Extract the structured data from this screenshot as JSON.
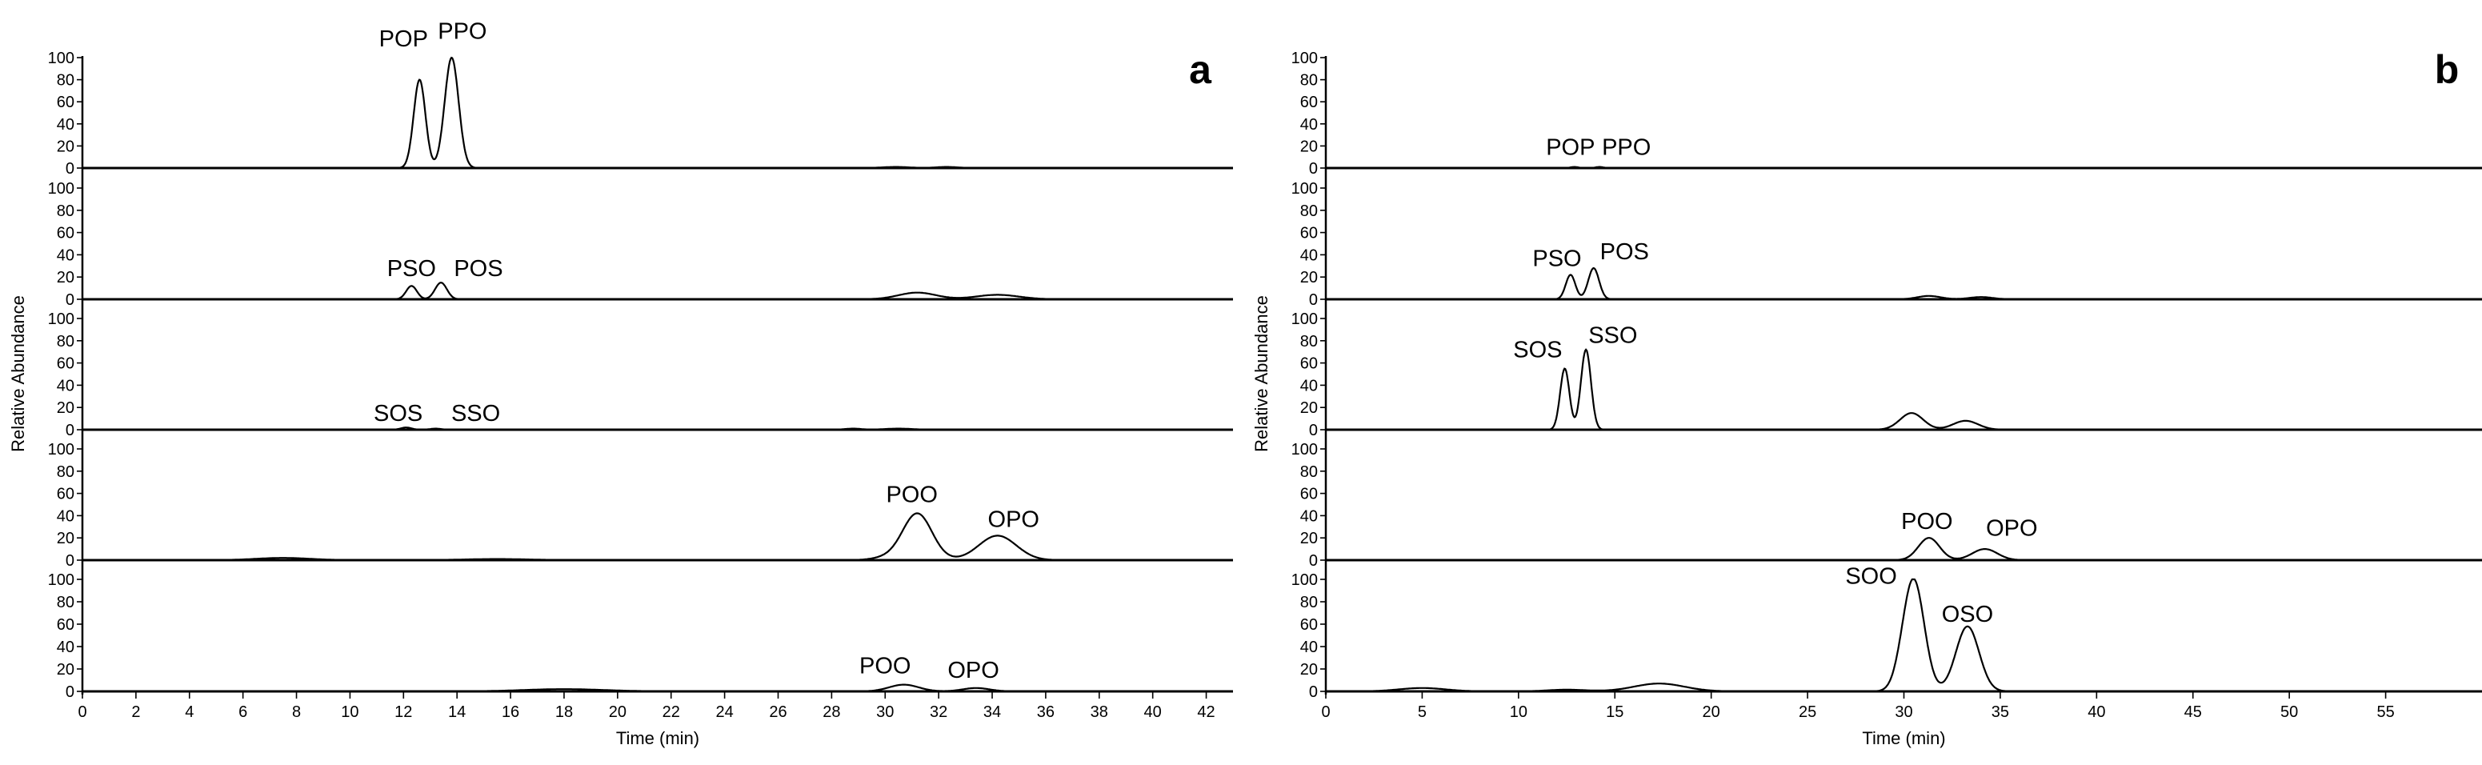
{
  "chart_data": [
    {
      "type": "line",
      "panel_letter": "a",
      "xlabel": "Time (min)",
      "ylabel": "Relative Abundance",
      "xlim": [
        0,
        43
      ],
      "ylim": [
        0,
        100
      ],
      "x_ticks": [
        0,
        2,
        4,
        6,
        8,
        10,
        12,
        14,
        16,
        18,
        20,
        22,
        24,
        26,
        28,
        30,
        32,
        34,
        36,
        38,
        40,
        42
      ],
      "y_ticks": [
        0,
        20,
        40,
        60,
        80,
        100
      ],
      "grid": false,
      "legend": "none",
      "traces": [
        {
          "peaks": [
            [
              12.6,
              80,
              0.22
            ],
            [
              13.8,
              100,
              0.26
            ],
            [
              30.4,
              1,
              0.5
            ],
            [
              32.3,
              1,
              0.4
            ]
          ],
          "labels": [
            {
              "text": "POP",
              "x": 12.0,
              "y": 110
            },
            {
              "text": "PPO",
              "x": 14.2,
              "y": 117
            }
          ]
        },
        {
          "peaks": [
            [
              12.3,
              12,
              0.2
            ],
            [
              13.4,
              15,
              0.22
            ],
            [
              31.2,
              6,
              0.7
            ],
            [
              34.2,
              4,
              0.8
            ]
          ],
          "labels": [
            {
              "text": "PSO",
              "x": 12.3,
              "y": 21
            },
            {
              "text": "POS",
              "x": 14.8,
              "y": 21
            }
          ]
        },
        {
          "peaks": [
            [
              12.1,
              2,
              0.2
            ],
            [
              13.2,
              1,
              0.2
            ],
            [
              28.8,
              1,
              0.3
            ],
            [
              30.5,
              1,
              0.5
            ]
          ],
          "labels": [
            {
              "text": "SOS",
              "x": 11.8,
              "y": 8
            },
            {
              "text": "SSO",
              "x": 14.7,
              "y": 8
            }
          ]
        },
        {
          "peaks": [
            [
              7.5,
              2,
              1.0
            ],
            [
              15.5,
              1,
              1.2
            ],
            [
              30.0,
              2,
              0.5
            ],
            [
              31.2,
              42,
              0.55
            ],
            [
              34.2,
              22,
              0.7
            ]
          ],
          "labels": [
            {
              "text": "POO",
              "x": 31.0,
              "y": 52
            },
            {
              "text": "OPO",
              "x": 34.8,
              "y": 30
            }
          ]
        },
        {
          "peaks": [
            [
              18.0,
              2,
              1.5
            ],
            [
              30.7,
              6,
              0.55
            ],
            [
              33.4,
              3,
              0.5
            ]
          ],
          "labels": [
            {
              "text": "POO",
              "x": 30.0,
              "y": 16
            },
            {
              "text": "OPO",
              "x": 33.3,
              "y": 12
            }
          ]
        }
      ]
    },
    {
      "type": "line",
      "panel_letter": "b",
      "xlabel": "Time (min)",
      "ylabel": "Relative Abundance",
      "xlim": [
        0,
        60
      ],
      "ylim": [
        0,
        100
      ],
      "x_ticks": [
        0,
        5,
        10,
        15,
        20,
        25,
        30,
        35,
        40,
        45,
        50,
        55
      ],
      "y_ticks": [
        0,
        20,
        40,
        60,
        80,
        100
      ],
      "grid": false,
      "legend": "none",
      "traces": [
        {
          "peaks": [
            [
              12.9,
              1,
              0.2
            ],
            [
              14.2,
              1,
              0.2
            ]
          ],
          "labels": [
            {
              "text": "POP",
              "x": 12.7,
              "y": 12
            },
            {
              "text": "PPO",
              "x": 15.6,
              "y": 12
            }
          ]
        },
        {
          "peaks": [
            [
              12.7,
              22,
              0.25
            ],
            [
              13.9,
              28,
              0.28
            ],
            [
              31.3,
              3,
              0.6
            ],
            [
              34.0,
              2,
              0.6
            ]
          ],
          "labels": [
            {
              "text": "PSO",
              "x": 12.0,
              "y": 30
            },
            {
              "text": "POS",
              "x": 15.5,
              "y": 36
            }
          ]
        },
        {
          "peaks": [
            [
              12.4,
              55,
              0.24
            ],
            [
              13.5,
              72,
              0.26
            ],
            [
              30.4,
              15,
              0.6
            ],
            [
              33.2,
              8,
              0.65
            ]
          ],
          "labels": [
            {
              "text": "SOS",
              "x": 11.0,
              "y": 65
            },
            {
              "text": "SSO",
              "x": 14.9,
              "y": 78
            }
          ]
        },
        {
          "peaks": [
            [
              31.3,
              20,
              0.55
            ],
            [
              34.2,
              10,
              0.65
            ]
          ],
          "labels": [
            {
              "text": "POO",
              "x": 31.2,
              "y": 28
            },
            {
              "text": "OPO",
              "x": 35.6,
              "y": 22
            }
          ]
        },
        {
          "peaks": [
            [
              5.0,
              3,
              1.2
            ],
            [
              12.5,
              1.5,
              1.0
            ],
            [
              17.3,
              7,
              1.3
            ],
            [
              29.8,
              3,
              0.4
            ],
            [
              30.5,
              100,
              0.55
            ],
            [
              33.3,
              58,
              0.6
            ]
          ],
          "labels": [
            {
              "text": "SOO",
              "x": 28.3,
              "y": 96
            },
            {
              "text": "OSO",
              "x": 33.3,
              "y": 62
            }
          ]
        }
      ]
    }
  ]
}
